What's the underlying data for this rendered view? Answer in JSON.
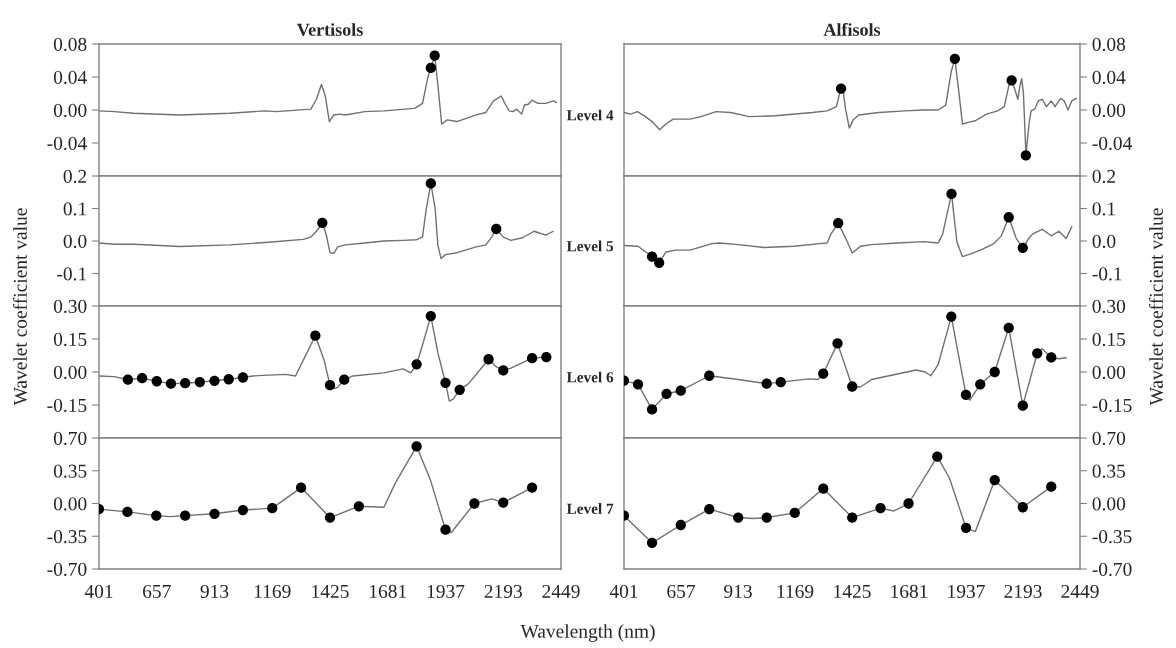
{
  "chart_data": [
    {
      "type": "line",
      "title": "Vertisols",
      "xlim": [
        401,
        2449
      ],
      "xticks": [
        401,
        657,
        913,
        1169,
        1425,
        1681,
        1937,
        2193,
        2449
      ],
      "ylim": [
        -0.08,
        0.08
      ],
      "yticks": [
        0.08,
        0.04,
        {
          "value": 0,
          "label": "0.00"
        },
        -0.04
      ],
      "tick_labels": "y",
      "annotations": [
        "Level 4"
      ],
      "series": [
        {
          "marker": "none",
          "color": "#707070",
          "x": [
            401,
            469,
            555,
            759,
            981,
            1135,
            1186,
            1340,
            1365,
            1387,
            1404,
            1422,
            1442,
            1468,
            1493,
            1579,
            1664,
            1800,
            1835,
            1860,
            1872,
            1889,
            1903,
            1920,
            1945,
            1988,
            2073,
            2116,
            2150,
            2184,
            2202,
            2219,
            2236,
            2253,
            2275,
            2287,
            2304,
            2321,
            2347,
            2381,
            2415,
            2429
          ],
          "values": [
            -0.001,
            -0.002,
            -0.004,
            -0.006,
            -0.004,
            -0.001,
            -0.002,
            0.001,
            0.013,
            0.031,
            0.017,
            -0.014,
            -0.006,
            -0.005,
            -0.006,
            -0.002,
            -0.001,
            0.002,
            0.008,
            0.041,
            0.05,
            0.066,
            0.031,
            -0.017,
            -0.012,
            -0.014,
            -0.006,
            -0.003,
            0.011,
            0.017,
            0.007,
            -0.001,
            -0.002,
            0.001,
            -0.005,
            0.006,
            0.007,
            0.012,
            0.008,
            0.008,
            0.011,
            0.009
          ]
        },
        {
          "type": "scatter",
          "marker": "circle",
          "color": "#000000",
          "x": [
            1872,
            1889
          ],
          "values": [
            0.051,
            0.066
          ]
        }
      ]
    },
    {
      "type": "line",
      "title": "Alfisols",
      "xlim": [
        401,
        2449
      ],
      "xticks": [
        401,
        657,
        913,
        1169,
        1425,
        1681,
        1937,
        2193,
        2449
      ],
      "ylim": [
        -0.08,
        0.08
      ],
      "yticks": [
        0.08,
        0.04,
        {
          "value": 0,
          "label": "0.00"
        },
        -0.04
      ],
      "tick_labels": "y",
      "series": [
        {
          "marker": "none",
          "color": "#707070",
          "x": [
            401,
            431,
            461,
            498,
            531,
            561,
            589,
            622,
            697,
            747,
            814,
            880,
            964,
            1080,
            1247,
            1313,
            1355,
            1371,
            1385,
            1396,
            1413,
            1430,
            1455,
            1546,
            1663,
            1746,
            1812,
            1846,
            1871,
            1887,
            1904,
            1921,
            1946,
            1979,
            2029,
            2079,
            2109,
            2129,
            2142,
            2154,
            2170,
            2179,
            2187,
            2195,
            2204,
            2206,
            2220,
            2229,
            2245,
            2262,
            2279,
            2298,
            2320,
            2337,
            2362,
            2378,
            2395,
            2412,
            2433
          ],
          "values": [
            -0.003,
            -0.005,
            -0.002,
            -0.008,
            -0.015,
            -0.024,
            -0.017,
            -0.011,
            -0.011,
            -0.008,
            -0.002,
            -0.003,
            -0.008,
            -0.007,
            -0.003,
            -0.001,
            0.004,
            0.022,
            0.024,
            0.001,
            -0.022,
            -0.012,
            -0.006,
            -0.003,
            -0.001,
            0.0,
            0.0,
            0.006,
            0.047,
            0.062,
            0.024,
            -0.017,
            -0.015,
            -0.013,
            -0.005,
            -0.001,
            0.004,
            0.029,
            0.036,
            0.027,
            0.013,
            0.029,
            0.038,
            0.02,
            -0.04,
            -0.055,
            -0.017,
            -0.001,
            0.001,
            0.011,
            0.013,
            0.004,
            0.011,
            0.004,
            0.014,
            0.011,
            0.0,
            0.011,
            0.014
          ]
        },
        {
          "type": "scatter",
          "marker": "circle",
          "color": "#000000",
          "x": [
            1376,
            1887,
            2142,
            2206
          ],
          "values": [
            0.026,
            0.062,
            0.036,
            -0.055
          ]
        }
      ]
    },
    {
      "type": "line",
      "xlim": [
        401,
        2449
      ],
      "xticks": [
        401,
        657,
        913,
        1169,
        1425,
        1681,
        1937,
        2193,
        2449
      ],
      "ylim": [
        -0.2,
        0.2
      ],
      "yticks": [
        0.2,
        0.1,
        {
          "value": 0,
          "label": "0.0"
        },
        -0.1
      ],
      "tick_labels": "y",
      "ylabel": "Wavelet coefficient value",
      "annotations": [
        "Level 5"
      ],
      "series": [
        {
          "marker": "none",
          "color": "#707070",
          "x": [
            401,
            469,
            555,
            759,
            981,
            1152,
            1306,
            1340,
            1365,
            1391,
            1408,
            1425,
            1442,
            1459,
            1493,
            1579,
            1664,
            1749,
            1809,
            1835,
            1852,
            1872,
            1891,
            1903,
            1917,
            1937,
            1988,
            2073,
            2116,
            2142,
            2162,
            2193,
            2227,
            2278,
            2330,
            2381,
            2415
          ],
          "values": [
            -0.006,
            -0.01,
            -0.01,
            -0.017,
            -0.012,
            -0.004,
            0.005,
            0.012,
            0.03,
            0.056,
            0.02,
            -0.036,
            -0.038,
            -0.018,
            -0.012,
            -0.006,
            0.0,
            0.002,
            0.004,
            0.012,
            0.1,
            0.177,
            0.1,
            -0.012,
            -0.054,
            -0.042,
            -0.036,
            -0.018,
            -0.012,
            0.012,
            0.037,
            0.012,
            0.002,
            0.01,
            0.03,
            0.018,
            0.03
          ]
        },
        {
          "type": "scatter",
          "marker": "circle",
          "color": "#000000",
          "x": [
            1391,
            1872,
            2162
          ],
          "values": [
            0.056,
            0.177,
            0.037
          ]
        }
      ]
    },
    {
      "type": "line",
      "xlim": [
        401,
        2449
      ],
      "xticks": [
        401,
        657,
        913,
        1169,
        1425,
        1681,
        1937,
        2193,
        2449
      ],
      "ylim": [
        -0.2,
        0.2
      ],
      "yticks": [
        0.2,
        0.1,
        {
          "value": 0,
          "label": "0.0"
        },
        -0.1
      ],
      "tick_labels": "y",
      "ylabel": "Wavelet coefficient value",
      "series": [
        {
          "marker": "none",
          "color": "#707070",
          "x": [
            401,
            464,
            527,
            559,
            589,
            631,
            697,
            797,
            830,
            914,
            1030,
            1163,
            1280,
            1313,
            1330,
            1363,
            1396,
            1426,
            1463,
            1513,
            1629,
            1746,
            1812,
            1832,
            1872,
            1896,
            1921,
            1962,
            2012,
            2062,
            2095,
            2129,
            2162,
            2192,
            2220,
            2237,
            2279,
            2320,
            2354,
            2387,
            2412
          ],
          "values": [
            -0.014,
            -0.016,
            -0.048,
            -0.067,
            -0.034,
            -0.028,
            -0.028,
            -0.008,
            -0.006,
            -0.011,
            -0.02,
            -0.016,
            -0.008,
            -0.006,
            0.021,
            0.055,
            0.009,
            -0.037,
            -0.016,
            -0.011,
            -0.006,
            -0.002,
            -0.006,
            0.021,
            0.145,
            -0.002,
            -0.048,
            -0.039,
            -0.025,
            -0.008,
            0.015,
            0.073,
            0.009,
            -0.021,
            0.009,
            0.022,
            0.036,
            0.016,
            0.03,
            0.008,
            0.044
          ]
        },
        {
          "type": "scatter",
          "marker": "circle",
          "color": "#000000",
          "x": [
            527,
            559,
            1363,
            1872,
            2129,
            2192
          ],
          "values": [
            -0.048,
            -0.067,
            0.055,
            0.145,
            0.073,
            -0.021
          ]
        }
      ]
    },
    {
      "type": "line",
      "xlim": [
        401,
        2449
      ],
      "xticks": [
        401,
        657,
        913,
        1169,
        1425,
        1681,
        1937,
        2193,
        2449
      ],
      "ylim": [
        -0.3,
        0.3
      ],
      "yticks": [
        {
          "value": 0.3,
          "label": "0.30"
        },
        0.15,
        {
          "value": 0,
          "label": "0.00"
        },
        -0.15
      ],
      "tick_labels": "y",
      "annotations": [
        "Level 6"
      ],
      "series": [
        {
          "marker": "none",
          "color": "#707070",
          "x": [
            401,
            469,
            529,
            592,
            657,
            720,
            783,
            848,
            913,
            976,
            1039,
            1084,
            1152,
            1229,
            1272,
            1306,
            1360,
            1399,
            1425,
            1442,
            1459,
            1488,
            1527,
            1664,
            1749,
            1783,
            1809,
            1835,
            1872,
            1903,
            1937,
            1954,
            1971,
            2000,
            2039,
            2082,
            2128,
            2159,
            2193,
            2227,
            2321,
            2384
          ],
          "values": [
            -0.018,
            -0.021,
            -0.035,
            -0.028,
            -0.042,
            -0.053,
            -0.051,
            -0.046,
            -0.04,
            -0.033,
            -0.025,
            -0.018,
            -0.014,
            -0.011,
            -0.018,
            0.053,
            0.165,
            0.053,
            -0.06,
            -0.075,
            -0.07,
            -0.035,
            -0.018,
            -0.004,
            0.014,
            -0.004,
            0.035,
            0.123,
            0.254,
            0.088,
            -0.049,
            -0.132,
            -0.123,
            -0.081,
            -0.053,
            0.0,
            0.058,
            0.026,
            0.007,
            0.018,
            0.063,
            0.068
          ]
        },
        {
          "type": "scatter",
          "marker": "circle",
          "color": "#000000",
          "x": [
            529,
            592,
            657,
            720,
            783,
            848,
            913,
            976,
            1039,
            1360,
            1425,
            1488,
            1809,
            1872,
            1937,
            2000,
            2128,
            2193,
            2321,
            2384
          ],
          "values": [
            -0.035,
            -0.028,
            -0.042,
            -0.053,
            -0.051,
            -0.046,
            -0.04,
            -0.033,
            -0.025,
            0.165,
            -0.06,
            -0.035,
            0.035,
            0.254,
            -0.049,
            -0.081,
            0.058,
            0.007,
            0.063,
            0.068
          ]
        }
      ]
    },
    {
      "type": "line",
      "xlim": [
        401,
        2449
      ],
      "xticks": [
        401,
        657,
        913,
        1169,
        1425,
        1681,
        1937,
        2193,
        2449
      ],
      "ylim": [
        -0.3,
        0.3
      ],
      "yticks": [
        {
          "value": 0.3,
          "label": "0.30"
        },
        0.15,
        {
          "value": 0,
          "label": "0.00"
        },
        -0.15
      ],
      "tick_labels": "y",
      "series": [
        {
          "marker": "none",
          "color": "#707070",
          "x": [
            401,
            464,
            527,
            592,
            656,
            784,
            914,
            1042,
            1105,
            1230,
            1272,
            1296,
            1360,
            1426,
            1463,
            1513,
            1713,
            1754,
            1779,
            1812,
            1871,
            1937,
            1954,
            2001,
            2066,
            2129,
            2192,
            2257,
            2279,
            2320,
            2354,
            2387
          ],
          "values": [
            -0.039,
            -0.056,
            -0.17,
            -0.099,
            -0.085,
            -0.017,
            -0.034,
            -0.053,
            -0.046,
            -0.031,
            -0.034,
            -0.007,
            0.13,
            -0.066,
            -0.068,
            -0.034,
            0.009,
            0.0,
            -0.017,
            0.034,
            0.252,
            -0.104,
            -0.128,
            -0.056,
            0.0,
            0.201,
            -0.153,
            0.085,
            0.106,
            0.066,
            0.06,
            0.065
          ]
        },
        {
          "type": "scatter",
          "marker": "circle",
          "color": "#000000",
          "x": [
            401,
            464,
            527,
            592,
            656,
            784,
            1042,
            1105,
            1296,
            1360,
            1426,
            1871,
            1937,
            2001,
            2066,
            2129,
            2192,
            2257,
            2320
          ],
          "values": [
            -0.039,
            -0.056,
            -0.17,
            -0.099,
            -0.085,
            -0.017,
            -0.053,
            -0.046,
            -0.007,
            0.13,
            -0.066,
            0.252,
            -0.104,
            -0.056,
            0.0,
            0.201,
            -0.153,
            0.085,
            0.066
          ]
        }
      ]
    },
    {
      "type": "line",
      "xlim": [
        401,
        2449
      ],
      "xticks": [
        401,
        657,
        913,
        1169,
        1425,
        1681,
        1937,
        2193,
        2449
      ],
      "ylim": [
        -0.7,
        0.7
      ],
      "yticks": [
        {
          "value": 0.7,
          "label": "0.70"
        },
        0.35,
        {
          "value": 0,
          "label": "0.00"
        },
        -0.35,
        {
          "value": -0.7,
          "label": "-0.70"
        }
      ],
      "xlabel": "Wavelength (nm)",
      "annotations": [
        "Level 7"
      ],
      "series": [
        {
          "marker": "none",
          "color": "#707070",
          "x": [
            401,
            527,
            655,
            718,
            783,
            913,
            1039,
            1169,
            1297,
            1425,
            1553,
            1664,
            1715,
            1809,
            1869,
            1937,
            1963,
            2065,
            2142,
            2193,
            2321
          ],
          "values": [
            -0.06,
            -0.09,
            -0.13,
            -0.14,
            -0.13,
            -0.11,
            -0.07,
            -0.05,
            0.17,
            -0.15,
            -0.03,
            -0.04,
            0.22,
            0.61,
            0.26,
            -0.28,
            -0.31,
            0.0,
            0.05,
            0.01,
            0.17
          ]
        },
        {
          "type": "scatter",
          "marker": "circle",
          "color": "#000000",
          "x": [
            401,
            527,
            655,
            783,
            913,
            1039,
            1169,
            1297,
            1425,
            1553,
            1809,
            1937,
            2065,
            2193,
            2321
          ],
          "values": [
            -0.06,
            -0.09,
            -0.13,
            -0.13,
            -0.11,
            -0.07,
            -0.05,
            0.17,
            -0.15,
            -0.03,
            0.61,
            -0.28,
            0.0,
            0.01,
            0.17
          ]
        }
      ]
    },
    {
      "type": "line",
      "xlim": [
        401,
        2449
      ],
      "xticks": [
        401,
        657,
        913,
        1169,
        1425,
        1681,
        1937,
        2193,
        2449
      ],
      "ylim": [
        -0.7,
        0.7
      ],
      "yticks": [
        {
          "value": 0.7,
          "label": "0.70"
        },
        0.35,
        {
          "value": 0,
          "label": "0.00"
        },
        -0.35,
        {
          "value": -0.7,
          "label": "-0.70"
        }
      ],
      "series": [
        {
          "marker": "none",
          "color": "#707070",
          "x": [
            401,
            527,
            656,
            784,
            914,
            980,
            1042,
            1168,
            1296,
            1426,
            1553,
            1613,
            1679,
            1808,
            1863,
            1937,
            1979,
            2066,
            2192,
            2320
          ],
          "values": [
            -0.13,
            -0.42,
            -0.23,
            -0.06,
            -0.15,
            -0.16,
            -0.15,
            -0.1,
            0.16,
            -0.15,
            -0.05,
            -0.08,
            0.0,
            0.5,
            0.27,
            -0.26,
            -0.3,
            0.25,
            -0.04,
            0.18
          ]
        },
        {
          "type": "scatter",
          "marker": "circle",
          "color": "#000000",
          "x": [
            401,
            527,
            656,
            784,
            914,
            1042,
            1168,
            1296,
            1426,
            1553,
            1679,
            1808,
            1937,
            2066,
            2192,
            2320
          ],
          "values": [
            -0.13,
            -0.42,
            -0.23,
            -0.06,
            -0.15,
            -0.15,
            -0.1,
            0.16,
            -0.15,
            -0.05,
            0.0,
            0.5,
            -0.26,
            0.25,
            -0.04,
            0.18
          ]
        }
      ]
    }
  ]
}
